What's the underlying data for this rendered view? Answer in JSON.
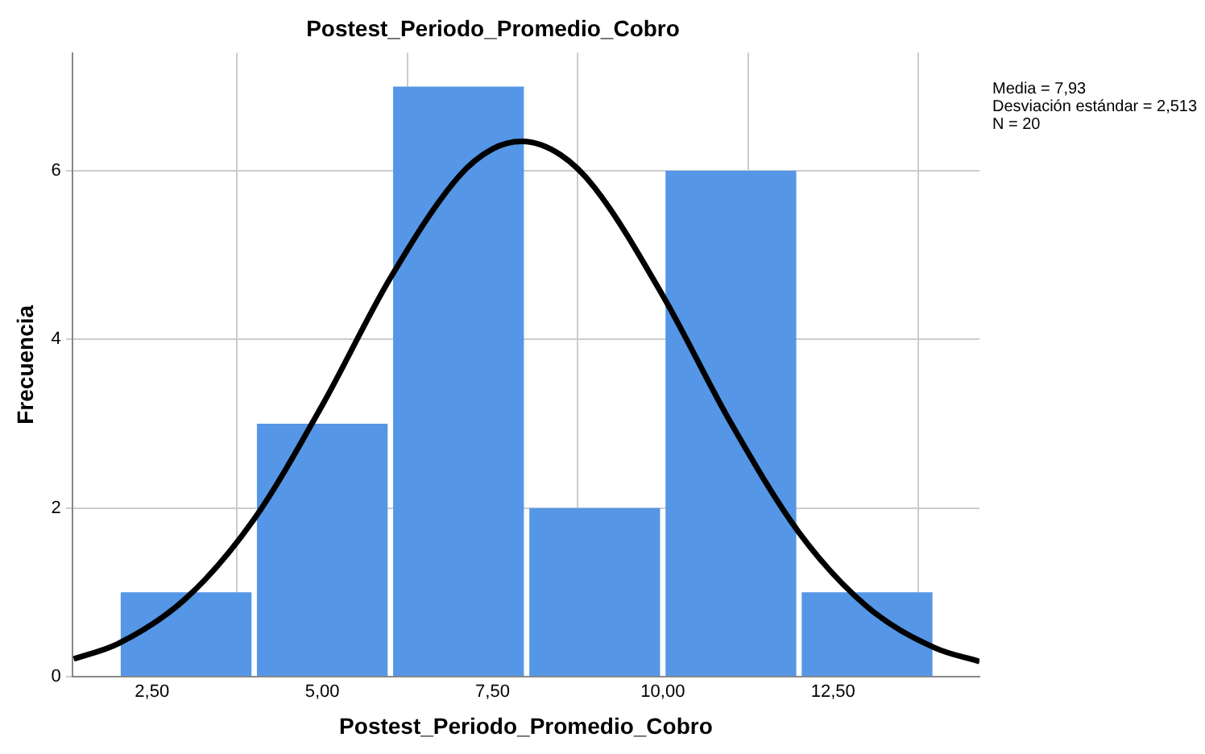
{
  "chart_data": {
    "type": "histogram",
    "title": "Postest_Periodo_Promedio_Cobro",
    "xlabel": "Postest_Periodo_Promedio_Cobro",
    "ylabel": "Frecuencia",
    "bins": [
      2,
      4,
      6,
      8,
      10,
      12,
      14
    ],
    "values": [
      1,
      3,
      7,
      2,
      6,
      1
    ],
    "color": "#5596e6",
    "series": [
      {
        "type": "line",
        "color": "#000000",
        "x": [
          1.35,
          2,
          3,
          4,
          5,
          6,
          7,
          7.5,
          7.93,
          8.5,
          9,
          10,
          11,
          12,
          13,
          14,
          14.65
        ],
        "values": [
          0.21,
          0.39,
          0.93,
          1.87,
          3.22,
          4.73,
          5.93,
          6.26,
          6.35,
          6.19,
          5.8,
          4.52,
          3.01,
          1.71,
          0.83,
          0.34,
          0.18
        ]
      }
    ],
    "xlim": [
      1.33,
      14.65
    ],
    "xticks": [
      {
        "value": 2.5,
        "label": "2,50"
      },
      {
        "value": 5,
        "label": "5,00"
      },
      {
        "value": 7.5,
        "label": "7,50"
      },
      {
        "value": 10,
        "label": "10,00"
      },
      {
        "value": 12.5,
        "label": "12,50"
      }
    ],
    "ylim": [
      0,
      7.4
    ],
    "yticks": [
      0,
      2,
      4,
      6
    ],
    "grid": true,
    "legend": false,
    "annotations": [
      "Media = 7,93",
      "Desviación estándar = 2,513",
      "N = 20"
    ]
  }
}
